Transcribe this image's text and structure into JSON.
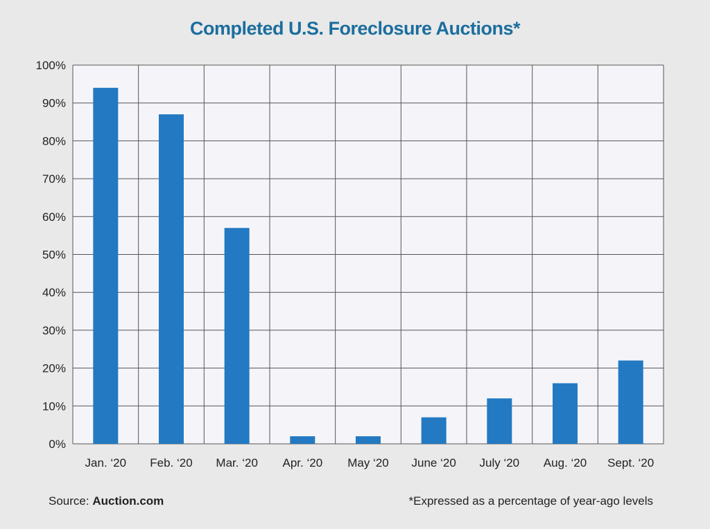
{
  "colors": {
    "title": "#1b6e9e",
    "bar": "#2379c2",
    "plot_bg": "#f5f5f9",
    "grid": "#555555"
  },
  "source": {
    "label": "Source:",
    "name": "Auction.com"
  },
  "footnote": "*Expressed as a percentage of year-ago levels",
  "chart_data": {
    "type": "bar",
    "title": "Completed U.S. Foreclosure Auctions*",
    "xlabel": "",
    "ylabel": "",
    "categories": [
      "Jan. ‘20",
      "Feb. ‘20",
      "Mar. ‘20",
      "Apr. ‘20",
      "May ‘20",
      "June ‘20",
      "July ‘20",
      "Aug. ‘20",
      "Sept. ‘20"
    ],
    "values": [
      94,
      87,
      57,
      2,
      2,
      7,
      12,
      16,
      22
    ],
    "ylim": [
      0,
      100
    ],
    "yticks": [
      "0%",
      "10%",
      "20%",
      "30%",
      "40%",
      "50%",
      "60%",
      "70%",
      "80%",
      "90%",
      "100%"
    ],
    "grid": true,
    "legend": "none"
  }
}
